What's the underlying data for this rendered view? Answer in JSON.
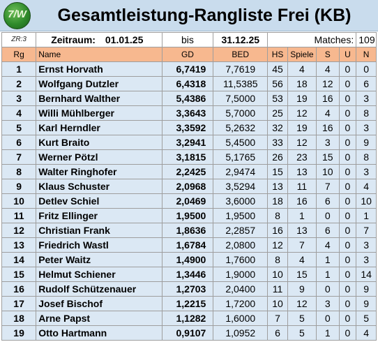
{
  "header": {
    "logo_text": "7/W",
    "title": "Gesamtleistung-Rangliste Frei (KB)"
  },
  "info": {
    "zr": "ZR:3",
    "zeitraum_label": "Zeitraum:",
    "from_date": "01.01.25",
    "bis": "bis",
    "to_date": "31.12.25",
    "matches_label": "Matches:",
    "matches_value": "109"
  },
  "columns": [
    "Rg",
    "Name",
    "GD",
    "BED",
    "HS",
    "Spiele",
    "S",
    "U",
    "N"
  ],
  "rows": [
    {
      "rg": "1",
      "name": "Ernst Horvath",
      "gd": "6,7419",
      "bed": "7,7619",
      "hs": "45",
      "spiele": "4",
      "s": "4",
      "u": "0",
      "n": "0"
    },
    {
      "rg": "2",
      "name": "Wolfgang Dutzler",
      "gd": "6,4318",
      "bed": "11,5385",
      "hs": "56",
      "spiele": "18",
      "s": "12",
      "u": "0",
      "n": "6"
    },
    {
      "rg": "3",
      "name": "Bernhard Walther",
      "gd": "5,4386",
      "bed": "7,5000",
      "hs": "53",
      "spiele": "19",
      "s": "16",
      "u": "0",
      "n": "3"
    },
    {
      "rg": "4",
      "name": "Willi Mühlberger",
      "gd": "3,3643",
      "bed": "5,7000",
      "hs": "25",
      "spiele": "12",
      "s": "4",
      "u": "0",
      "n": "8"
    },
    {
      "rg": "5",
      "name": "Karl Herndler",
      "gd": "3,3592",
      "bed": "5,2632",
      "hs": "32",
      "spiele": "19",
      "s": "16",
      "u": "0",
      "n": "3"
    },
    {
      "rg": "6",
      "name": "Kurt Braito",
      "gd": "3,2941",
      "bed": "5,4500",
      "hs": "33",
      "spiele": "12",
      "s": "3",
      "u": "0",
      "n": "9"
    },
    {
      "rg": "7",
      "name": "Werner Pötzl",
      "gd": "3,1815",
      "bed": "5,1765",
      "hs": "26",
      "spiele": "23",
      "s": "15",
      "u": "0",
      "n": "8"
    },
    {
      "rg": "8",
      "name": "Walter Ringhofer",
      "gd": "2,2425",
      "bed": "2,9474",
      "hs": "15",
      "spiele": "13",
      "s": "10",
      "u": "0",
      "n": "3"
    },
    {
      "rg": "9",
      "name": "Klaus Schuster",
      "gd": "2,0968",
      "bed": "3,5294",
      "hs": "13",
      "spiele": "11",
      "s": "7",
      "u": "0",
      "n": "4"
    },
    {
      "rg": "10",
      "name": "Detlev Schiel",
      "gd": "2,0469",
      "bed": "3,6000",
      "hs": "18",
      "spiele": "16",
      "s": "6",
      "u": "0",
      "n": "10"
    },
    {
      "rg": "11",
      "name": "Fritz Ellinger",
      "gd": "1,9500",
      "bed": "1,9500",
      "hs": "8",
      "spiele": "1",
      "s": "0",
      "u": "0",
      "n": "1"
    },
    {
      "rg": "12",
      "name": "Christian Frank",
      "gd": "1,8636",
      "bed": "2,2857",
      "hs": "16",
      "spiele": "13",
      "s": "6",
      "u": "0",
      "n": "7"
    },
    {
      "rg": "13",
      "name": "Friedrich Wastl",
      "gd": "1,6784",
      "bed": "2,0800",
      "hs": "12",
      "spiele": "7",
      "s": "4",
      "u": "0",
      "n": "3"
    },
    {
      "rg": "14",
      "name": "Peter Waitz",
      "gd": "1,4900",
      "bed": "1,7600",
      "hs": "8",
      "spiele": "4",
      "s": "1",
      "u": "0",
      "n": "3"
    },
    {
      "rg": "15",
      "name": "Helmut Schiener",
      "gd": "1,3446",
      "bed": "1,9000",
      "hs": "10",
      "spiele": "15",
      "s": "1",
      "u": "0",
      "n": "14"
    },
    {
      "rg": "16",
      "name": "Rudolf Schützenauer",
      "gd": "1,2703",
      "bed": "2,0400",
      "hs": "11",
      "spiele": "9",
      "s": "0",
      "u": "0",
      "n": "9"
    },
    {
      "rg": "17",
      "name": "Josef Bischof",
      "gd": "1,2215",
      "bed": "1,7200",
      "hs": "10",
      "spiele": "12",
      "s": "3",
      "u": "0",
      "n": "9"
    },
    {
      "rg": "18",
      "name": "Arne Papst",
      "gd": "1,1282",
      "bed": "1,6000",
      "hs": "7",
      "spiele": "5",
      "s": "0",
      "u": "0",
      "n": "5"
    },
    {
      "rg": "19",
      "name": "Otto Hartmann",
      "gd": "0,9107",
      "bed": "1,0952",
      "hs": "6",
      "spiele": "5",
      "s": "1",
      "u": "0",
      "n": "4"
    }
  ]
}
